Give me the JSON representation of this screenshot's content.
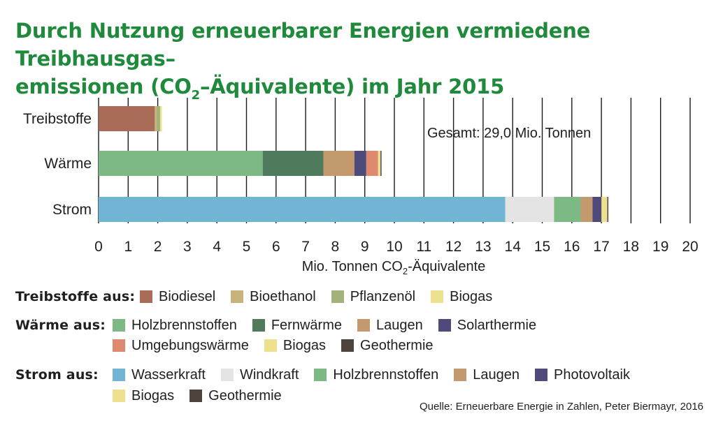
{
  "title_line1": "Durch Nutzung erneuerbarer Energien vermiedene Treibhausgas–",
  "title_line2_part1": "emissionen (CO",
  "title_line2_sub": "2",
  "title_line2_part2": "–Äquivalente) im Jahr 2015",
  "source": "Quelle: Erneuerbare Energie in Zahlen, Peter Biermayr, 2016",
  "colors": {
    "title": "#1f8a3c",
    "Biodiesel": "#a86c58",
    "Bioethanol": "#c8b37a",
    "Pflanzenöl": "#a3b27a",
    "Biogas": "#ede08e",
    "Holzbrennstoffen": "#7db985",
    "Fernwärme": "#4f7a5c",
    "Laugen": "#c39a6e",
    "Solarthermie": "#4e4a7a",
    "Umgebungswärme": "#df8a6e",
    "Geothermie": "#4d443e",
    "Wasserkraft": "#72b4d4",
    "Windkraft": "#e4e4e4",
    "Photovoltaik": "#4e4a7a"
  },
  "legend": [
    {
      "heading": "Treibstoffe aus:",
      "items": [
        "Biodiesel",
        "Bioethanol",
        "Pflanzenöl",
        "Biogas"
      ]
    },
    {
      "heading": "Wärme aus:",
      "items": [
        "Holzbrennstoffen",
        "Fernwärme",
        "Laugen",
        "Solarthermie"
      ]
    },
    {
      "heading": "",
      "items": [
        "Umgebungswärme",
        "Biogas",
        "Geothermie"
      ]
    },
    {
      "heading": "Strom aus:",
      "items": [
        "Wasserkraft",
        "Windkraft",
        "Holzbrennstoffen",
        "Laugen",
        "Photovoltaik"
      ]
    },
    {
      "heading": "",
      "items": [
        "Biogas",
        "Geothermie"
      ]
    }
  ],
  "chart_data": {
    "type": "bar",
    "orientation": "horizontal",
    "stacked": true,
    "categories": [
      "Treibstoffe",
      "Wärme",
      "Strom"
    ],
    "xlabel_main": "Mio. Tonnen CO",
    "xlabel_sub": "2",
    "xlabel_tail": "-Äquivalente",
    "xlim": [
      0,
      20
    ],
    "xticks": [
      0,
      1,
      2,
      3,
      4,
      5,
      6,
      7,
      8,
      9,
      10,
      11,
      12,
      13,
      14,
      15,
      16,
      17,
      18,
      19,
      20
    ],
    "grid": "vertical",
    "annotation": "Gesamt: 29,0 Mio. Tonnen",
    "bars": [
      {
        "category": "Treibstoffe",
        "segments": [
          {
            "name": "Biodiesel",
            "value": 1.9
          },
          {
            "name": "Bioethanol",
            "value": 0.06
          },
          {
            "name": "Pflanzenöl",
            "value": 0.12
          },
          {
            "name": "Biogas",
            "value": 0.06
          }
        ]
      },
      {
        "category": "Wärme",
        "segments": [
          {
            "name": "Holzbrennstoffen",
            "value": 5.55
          },
          {
            "name": "Fernwärme",
            "value": 2.05
          },
          {
            "name": "Laugen",
            "value": 1.05
          },
          {
            "name": "Solarthermie",
            "value": 0.4
          },
          {
            "name": "Umgebungswärme",
            "value": 0.4
          },
          {
            "name": "Biogas",
            "value": 0.08
          },
          {
            "name": "Geothermie",
            "value": 0.02
          }
        ]
      },
      {
        "category": "Strom",
        "segments": [
          {
            "name": "Wasserkraft",
            "value": 13.75
          },
          {
            "name": "Windkraft",
            "value": 1.65
          },
          {
            "name": "Holzbrennstoffen",
            "value": 0.9
          },
          {
            "name": "Laugen",
            "value": 0.4
          },
          {
            "name": "Photovoltaik",
            "value": 0.3
          },
          {
            "name": "Biogas",
            "value": 0.2
          },
          {
            "name": "Geothermie",
            "value": 0.02
          }
        ]
      }
    ]
  }
}
